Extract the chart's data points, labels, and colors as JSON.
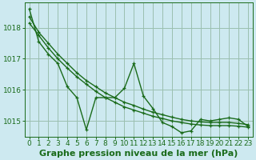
{
  "xlabel": "Graphe pression niveau de la mer (hPa)",
  "hours": [
    0,
    1,
    2,
    3,
    4,
    5,
    6,
    7,
    8,
    9,
    10,
    11,
    12,
    13,
    14,
    15,
    16,
    17,
    18,
    19,
    20,
    21,
    22,
    23
  ],
  "line_volatile": [
    1018.6,
    1017.55,
    1017.15,
    1016.85,
    1016.1,
    1015.75,
    1014.72,
    1015.75,
    1015.75,
    1015.75,
    1016.05,
    1016.85,
    1015.8,
    1015.4,
    1014.95,
    1014.82,
    1014.62,
    1014.68,
    1015.05,
    1015.0,
    1015.05,
    1015.1,
    1015.05,
    1014.82
  ],
  "smooth1": [
    1018.35,
    1017.85,
    1017.5,
    1017.15,
    1016.85,
    1016.55,
    1016.3,
    1016.1,
    1015.9,
    1015.75,
    1015.6,
    1015.5,
    1015.38,
    1015.28,
    1015.2,
    1015.12,
    1015.05,
    1015.0,
    1014.97,
    1014.95,
    1014.95,
    1014.95,
    1014.92,
    1014.88
  ],
  "smooth2": [
    1018.15,
    1017.75,
    1017.35,
    1017.0,
    1016.7,
    1016.42,
    1016.18,
    1015.95,
    1015.75,
    1015.6,
    1015.45,
    1015.35,
    1015.25,
    1015.15,
    1015.08,
    1015.0,
    1014.95,
    1014.9,
    1014.87,
    1014.85,
    1014.85,
    1014.85,
    1014.83,
    1014.8
  ],
  "bg_color": "#cde9f0",
  "line_color": "#1a6b1a",
  "grid_color": "#9bbfb0",
  "ylim": [
    1014.5,
    1018.8
  ],
  "yticks": [
    1015,
    1016,
    1017,
    1018
  ],
  "xticks": [
    0,
    1,
    2,
    3,
    4,
    5,
    6,
    7,
    8,
    9,
    10,
    11,
    12,
    13,
    14,
    15,
    16,
    17,
    18,
    19,
    20,
    21,
    22,
    23
  ],
  "marker_size": 2.8,
  "line_width": 1.0,
  "font_size": 6.5,
  "xlabel_fontsize": 8.0
}
